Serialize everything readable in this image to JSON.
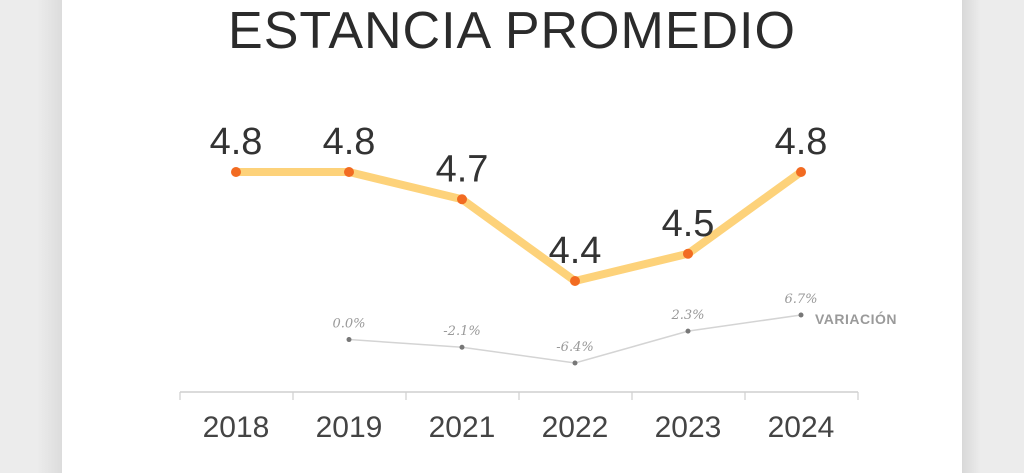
{
  "chart_data": {
    "type": "line",
    "title": "ESTANCIA PROMEDIO",
    "categories": [
      "2018",
      "2019",
      "2021",
      "2022",
      "2023",
      "2024"
    ],
    "series": [
      {
        "name": "",
        "values": [
          4.8,
          4.8,
          4.7,
          4.4,
          4.5,
          4.8
        ],
        "labels": [
          "4.8",
          "4.8",
          "4.7",
          "4.4",
          "4.5",
          "4.8"
        ],
        "color": "#fdd27a",
        "marker_color": "#f26b21"
      },
      {
        "name": "VARIACIÓN",
        "values": [
          null,
          0.0,
          -2.1,
          -6.4,
          2.3,
          6.7
        ],
        "labels": [
          "",
          "0.0%",
          "-2.1%",
          "-6.4%",
          "2.3%",
          "6.7%"
        ],
        "color": "#d4d4d4",
        "marker_color": "#777777"
      }
    ],
    "xlabel": "",
    "ylabel": "",
    "grid": false
  }
}
